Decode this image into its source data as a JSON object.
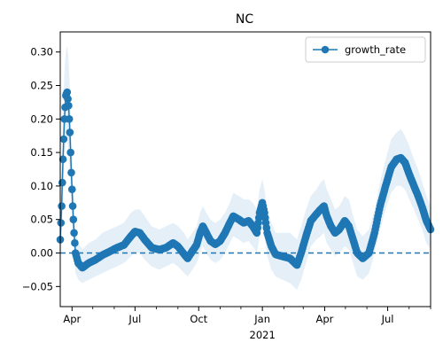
{
  "chart_data": {
    "type": "line",
    "title": "NC",
    "xlabel": "",
    "ylabel": "",
    "xlim": [
      "2020-03-15",
      "2021-09-01"
    ],
    "ylim": [
      -0.08,
      0.33
    ],
    "x_ticks": [
      {
        "date": "2020-04-01",
        "label": "Apr"
      },
      {
        "date": "2020-07-01",
        "label": "Jul"
      },
      {
        "date": "2020-10-01",
        "label": "Oct"
      },
      {
        "date": "2021-01-01",
        "label": "Jan",
        "sublabel": "2021"
      },
      {
        "date": "2021-04-01",
        "label": "Apr"
      },
      {
        "date": "2021-07-01",
        "label": "Jul"
      }
    ],
    "x_minor_tick_months": [
      "2020-05-01",
      "2020-06-01",
      "2020-08-01",
      "2020-09-01",
      "2020-11-01",
      "2020-12-01",
      "2021-02-01",
      "2021-03-01",
      "2021-05-01",
      "2021-06-01",
      "2021-08-01",
      "2021-09-01"
    ],
    "y_ticks": [
      -0.05,
      0.0,
      0.05,
      0.1,
      0.15,
      0.2,
      0.25,
      0.3
    ],
    "y_tick_labels": [
      "−0.05",
      "0.00",
      "0.05",
      "0.10",
      "0.15",
      "0.20",
      "0.25",
      "0.30"
    ],
    "reference_line": {
      "y": 0.0,
      "style": "dashed",
      "color": "#1f77b4"
    },
    "legend": {
      "position": "top-right",
      "entries": [
        {
          "label": "growth_rate",
          "color": "#1f77b4",
          "marker": "circle"
        }
      ]
    },
    "series": [
      {
        "name": "growth_rate",
        "color": "#1f77b4",
        "band_color": "#dce9f5",
        "points": [
          {
            "x": "2020-03-15",
            "y": 0.02,
            "lo": -0.02,
            "hi": 0.06
          },
          {
            "x": "2020-03-17",
            "y": 0.07,
            "lo": 0.02,
            "hi": 0.12
          },
          {
            "x": "2020-03-19",
            "y": 0.14,
            "lo": 0.08,
            "hi": 0.2
          },
          {
            "x": "2020-03-21",
            "y": 0.2,
            "lo": 0.14,
            "hi": 0.27
          },
          {
            "x": "2020-03-23",
            "y": 0.235,
            "lo": 0.17,
            "hi": 0.3
          },
          {
            "x": "2020-03-25",
            "y": 0.24,
            "lo": 0.17,
            "hi": 0.31
          },
          {
            "x": "2020-03-27",
            "y": 0.22,
            "lo": 0.15,
            "hi": 0.29
          },
          {
            "x": "2020-03-29",
            "y": 0.18,
            "lo": 0.12,
            "hi": 0.24
          },
          {
            "x": "2020-03-31",
            "y": 0.12,
            "lo": 0.07,
            "hi": 0.18
          },
          {
            "x": "2020-04-02",
            "y": 0.07,
            "lo": 0.03,
            "hi": 0.12
          },
          {
            "x": "2020-04-04",
            "y": 0.03,
            "lo": 0.0,
            "hi": 0.07
          },
          {
            "x": "2020-04-06",
            "y": 0.0,
            "lo": -0.03,
            "hi": 0.04
          },
          {
            "x": "2020-04-10",
            "y": -0.015,
            "lo": -0.04,
            "hi": 0.015
          },
          {
            "x": "2020-04-16",
            "y": -0.022,
            "lo": -0.045,
            "hi": 0.005
          },
          {
            "x": "2020-04-25",
            "y": -0.015,
            "lo": -0.04,
            "hi": 0.015
          },
          {
            "x": "2020-05-05",
            "y": -0.01,
            "lo": -0.035,
            "hi": 0.02
          },
          {
            "x": "2020-05-15",
            "y": -0.003,
            "lo": -0.03,
            "hi": 0.03
          },
          {
            "x": "2020-05-25",
            "y": 0.002,
            "lo": -0.025,
            "hi": 0.035
          },
          {
            "x": "2020-06-05",
            "y": 0.008,
            "lo": -0.02,
            "hi": 0.04
          },
          {
            "x": "2020-06-15",
            "y": 0.012,
            "lo": -0.015,
            "hi": 0.045
          },
          {
            "x": "2020-06-25",
            "y": 0.025,
            "lo": -0.005,
            "hi": 0.06
          },
          {
            "x": "2020-07-01",
            "y": 0.032,
            "lo": 0.0,
            "hi": 0.065
          },
          {
            "x": "2020-07-08",
            "y": 0.03,
            "lo": 0.0,
            "hi": 0.065
          },
          {
            "x": "2020-07-15",
            "y": 0.02,
            "lo": -0.01,
            "hi": 0.055
          },
          {
            "x": "2020-07-25",
            "y": 0.008,
            "lo": -0.02,
            "hi": 0.04
          },
          {
            "x": "2020-08-05",
            "y": 0.005,
            "lo": -0.025,
            "hi": 0.035
          },
          {
            "x": "2020-08-15",
            "y": 0.008,
            "lo": -0.02,
            "hi": 0.04
          },
          {
            "x": "2020-08-25",
            "y": 0.015,
            "lo": -0.015,
            "hi": 0.045
          },
          {
            "x": "2020-09-01",
            "y": 0.01,
            "lo": -0.02,
            "hi": 0.04
          },
          {
            "x": "2020-09-10",
            "y": -0.002,
            "lo": -0.03,
            "hi": 0.03
          },
          {
            "x": "2020-09-15",
            "y": -0.008,
            "lo": -0.035,
            "hi": 0.02
          },
          {
            "x": "2020-09-22",
            "y": 0.003,
            "lo": -0.025,
            "hi": 0.03
          },
          {
            "x": "2020-09-28",
            "y": 0.012,
            "lo": -0.015,
            "hi": 0.04
          },
          {
            "x": "2020-10-03",
            "y": 0.03,
            "lo": 0.0,
            "hi": 0.06
          },
          {
            "x": "2020-10-07",
            "y": 0.04,
            "lo": 0.01,
            "hi": 0.07
          },
          {
            "x": "2020-10-12",
            "y": 0.03,
            "lo": 0.0,
            "hi": 0.06
          },
          {
            "x": "2020-10-18",
            "y": 0.018,
            "lo": -0.01,
            "hi": 0.05
          },
          {
            "x": "2020-10-25",
            "y": 0.013,
            "lo": -0.015,
            "hi": 0.045
          },
          {
            "x": "2020-11-01",
            "y": 0.018,
            "lo": -0.01,
            "hi": 0.05
          },
          {
            "x": "2020-11-08",
            "y": 0.03,
            "lo": 0.0,
            "hi": 0.06
          },
          {
            "x": "2020-11-15",
            "y": 0.045,
            "lo": 0.015,
            "hi": 0.075
          },
          {
            "x": "2020-11-20",
            "y": 0.055,
            "lo": 0.025,
            "hi": 0.09
          },
          {
            "x": "2020-11-28",
            "y": 0.05,
            "lo": 0.02,
            "hi": 0.085
          },
          {
            "x": "2020-12-05",
            "y": 0.045,
            "lo": 0.015,
            "hi": 0.08
          },
          {
            "x": "2020-12-12",
            "y": 0.048,
            "lo": 0.018,
            "hi": 0.08
          },
          {
            "x": "2020-12-18",
            "y": 0.04,
            "lo": 0.01,
            "hi": 0.075
          },
          {
            "x": "2020-12-24",
            "y": 0.03,
            "lo": 0.0,
            "hi": 0.065
          },
          {
            "x": "2020-12-28",
            "y": 0.06,
            "lo": 0.025,
            "hi": 0.095
          },
          {
            "x": "2021-01-01",
            "y": 0.075,
            "lo": 0.04,
            "hi": 0.11
          },
          {
            "x": "2021-01-04",
            "y": 0.06,
            "lo": 0.025,
            "hi": 0.095
          },
          {
            "x": "2021-01-08",
            "y": 0.03,
            "lo": -0.005,
            "hi": 0.065
          },
          {
            "x": "2021-01-14",
            "y": 0.01,
            "lo": -0.025,
            "hi": 0.045
          },
          {
            "x": "2021-01-20",
            "y": -0.002,
            "lo": -0.035,
            "hi": 0.03
          },
          {
            "x": "2021-01-30",
            "y": -0.005,
            "lo": -0.04,
            "hi": 0.03
          },
          {
            "x": "2021-02-10",
            "y": -0.008,
            "lo": -0.045,
            "hi": 0.03
          },
          {
            "x": "2021-02-20",
            "y": -0.018,
            "lo": -0.055,
            "hi": 0.02
          },
          {
            "x": "2021-02-26",
            "y": 0.0,
            "lo": -0.04,
            "hi": 0.04
          },
          {
            "x": "2021-03-05",
            "y": 0.025,
            "lo": -0.015,
            "hi": 0.065
          },
          {
            "x": "2021-03-12",
            "y": 0.048,
            "lo": 0.01,
            "hi": 0.085
          },
          {
            "x": "2021-03-20",
            "y": 0.058,
            "lo": 0.02,
            "hi": 0.095
          },
          {
            "x": "2021-03-26",
            "y": 0.065,
            "lo": 0.025,
            "hi": 0.105
          },
          {
            "x": "2021-03-31",
            "y": 0.07,
            "lo": 0.03,
            "hi": 0.11
          },
          {
            "x": "2021-04-04",
            "y": 0.055,
            "lo": 0.015,
            "hi": 0.095
          },
          {
            "x": "2021-04-10",
            "y": 0.04,
            "lo": 0.005,
            "hi": 0.08
          },
          {
            "x": "2021-04-16",
            "y": 0.03,
            "lo": -0.005,
            "hi": 0.065
          },
          {
            "x": "2021-04-22",
            "y": 0.035,
            "lo": 0.0,
            "hi": 0.07
          },
          {
            "x": "2021-04-30",
            "y": 0.048,
            "lo": 0.01,
            "hi": 0.085
          },
          {
            "x": "2021-05-06",
            "y": 0.04,
            "lo": 0.005,
            "hi": 0.08
          },
          {
            "x": "2021-05-12",
            "y": 0.02,
            "lo": -0.015,
            "hi": 0.055
          },
          {
            "x": "2021-05-18",
            "y": 0.0,
            "lo": -0.035,
            "hi": 0.035
          },
          {
            "x": "2021-05-26",
            "y": -0.008,
            "lo": -0.04,
            "hi": 0.025
          },
          {
            "x": "2021-06-04",
            "y": 0.0,
            "lo": -0.03,
            "hi": 0.035
          },
          {
            "x": "2021-06-12",
            "y": 0.03,
            "lo": 0.0,
            "hi": 0.065
          },
          {
            "x": "2021-06-20",
            "y": 0.07,
            "lo": 0.035,
            "hi": 0.105
          },
          {
            "x": "2021-06-28",
            "y": 0.1,
            "lo": 0.065,
            "hi": 0.14
          },
          {
            "x": "2021-07-06",
            "y": 0.128,
            "lo": 0.09,
            "hi": 0.17
          },
          {
            "x": "2021-07-14",
            "y": 0.14,
            "lo": 0.1,
            "hi": 0.18
          },
          {
            "x": "2021-07-20",
            "y": 0.142,
            "lo": 0.1,
            "hi": 0.185
          },
          {
            "x": "2021-07-26",
            "y": 0.135,
            "lo": 0.095,
            "hi": 0.175
          },
          {
            "x": "2021-08-01",
            "y": 0.118,
            "lo": 0.08,
            "hi": 0.16
          },
          {
            "x": "2021-08-08",
            "y": 0.1,
            "lo": 0.065,
            "hi": 0.14
          },
          {
            "x": "2021-08-14",
            "y": 0.085,
            "lo": 0.05,
            "hi": 0.125
          },
          {
            "x": "2021-08-20",
            "y": 0.068,
            "lo": 0.035,
            "hi": 0.105
          },
          {
            "x": "2021-08-26",
            "y": 0.048,
            "lo": 0.015,
            "hi": 0.085
          },
          {
            "x": "2021-09-01",
            "y": 0.035,
            "lo": 0.005,
            "hi": 0.07
          }
        ]
      }
    ]
  }
}
